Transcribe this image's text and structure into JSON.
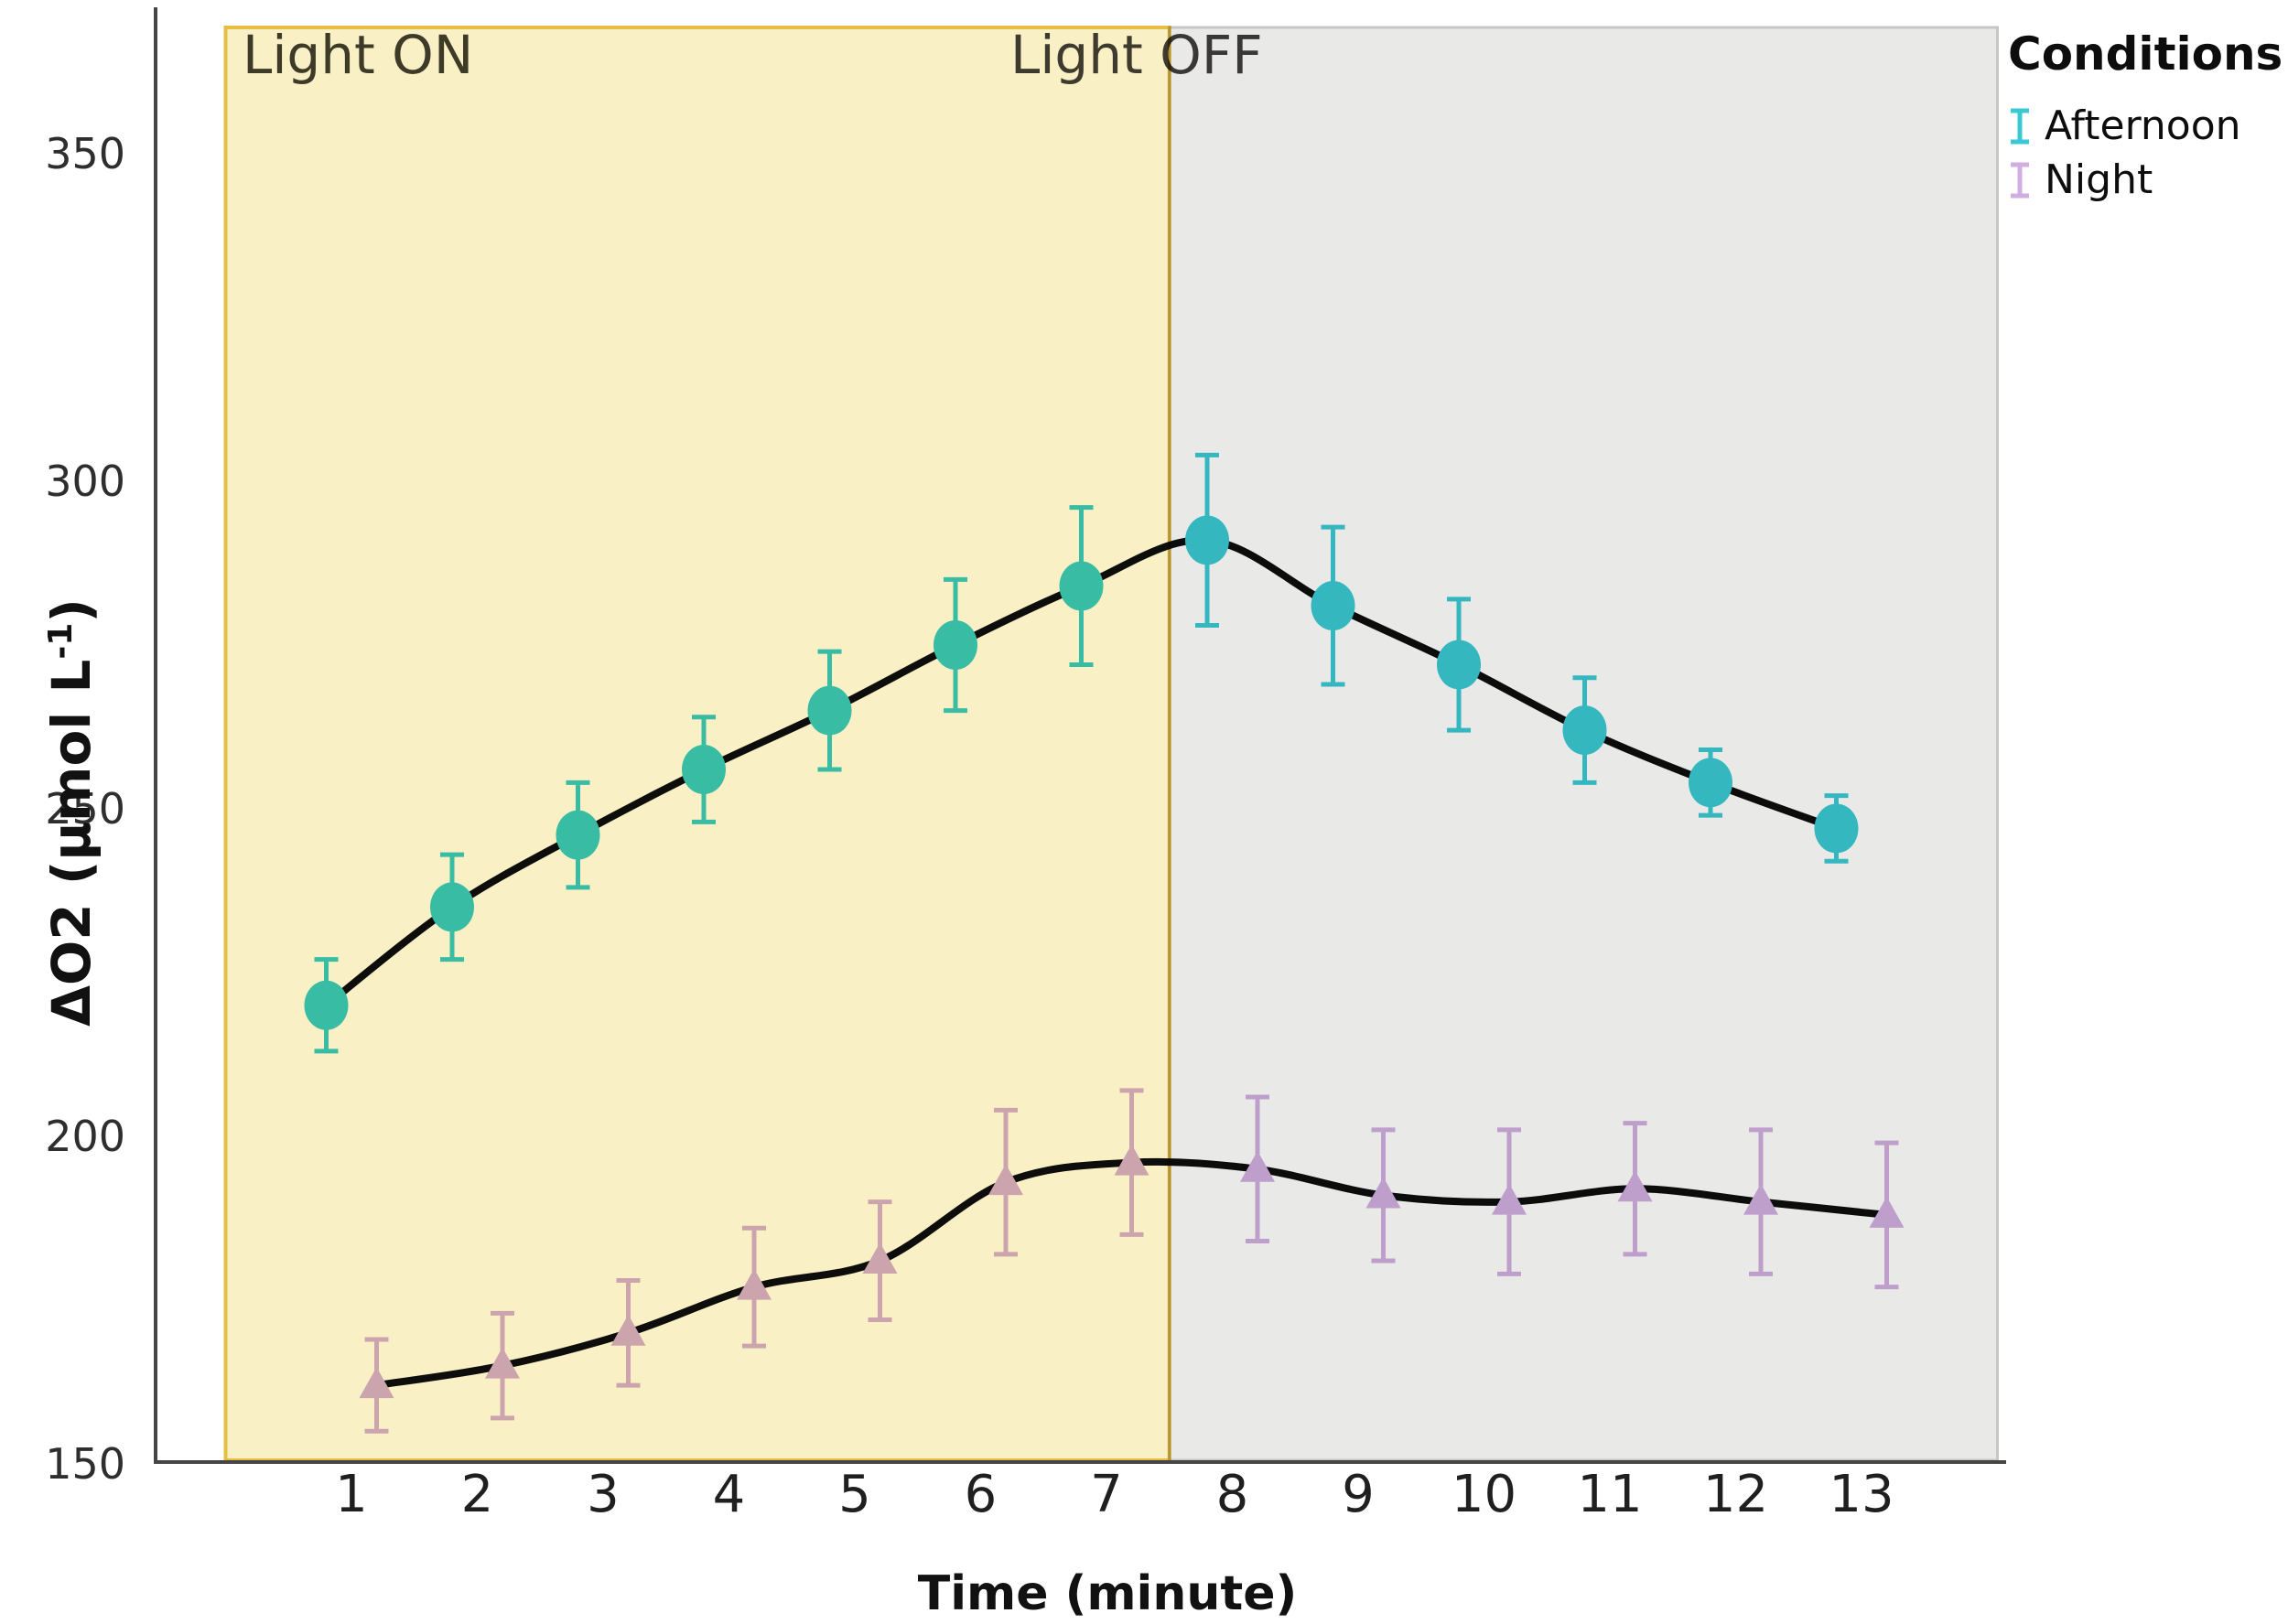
{
  "legend": {
    "title": "Conditions",
    "items": [
      {
        "label": "Afternoon",
        "color": "#3AC8D4"
      },
      {
        "label": "Night",
        "color": "#D0AEE2"
      }
    ]
  },
  "axes": {
    "x_title": "Time (minute)",
    "y_title_main": "ΔO2 (μmol L",
    "y_title_sup": "-1",
    "y_title_close": ")",
    "x_ticks": [
      1,
      2,
      3,
      4,
      5,
      6,
      7,
      8,
      9,
      10,
      11,
      12,
      13
    ],
    "y_ticks": [
      150,
      200,
      250,
      300,
      350
    ]
  },
  "chart_data": {
    "type": "line",
    "title": "",
    "xlabel": "Time (minute)",
    "ylabel": "ΔO2 (μmol L-1)",
    "x": [
      1,
      2,
      3,
      4,
      5,
      6,
      7,
      8,
      9,
      10,
      11,
      12,
      13
    ],
    "ylim": [
      150,
      360
    ],
    "grid": false,
    "legend_position": "top-right",
    "line_color": "#0d0d0d",
    "axis_color": "#454545",
    "tick_color": "#1f1f1f",
    "series": [
      {
        "name": "Afternoon",
        "marker": "circle",
        "color": "#3AC8D4",
        "dodge": -0.2,
        "values": [
          220,
          235,
          246,
          256,
          265,
          275,
          284,
          291,
          281,
          272,
          262,
          254,
          247
        ],
        "errors": [
          7,
          8,
          8,
          8,
          9,
          10,
          12,
          13,
          12,
          10,
          8,
          5,
          5
        ]
      },
      {
        "name": "Night",
        "marker": "triangle",
        "color": "#D0AEE2",
        "dodge": 0.2,
        "values": [
          162,
          165,
          170,
          177,
          181,
          193,
          196,
          195,
          191,
          190,
          192,
          190,
          188
        ],
        "errors": [
          7,
          8,
          8,
          9,
          9,
          11,
          11,
          11,
          10,
          11,
          10,
          11,
          11
        ]
      }
    ],
    "bands": [
      {
        "label": "Light ON",
        "x_start": 0.0,
        "x_end": 7.5,
        "fill": "#FAF0C5",
        "border": "#E7BE45",
        "label_color": "#3F3D33"
      },
      {
        "label": "Light OFF",
        "x_start": 7.5,
        "x_end": 14.08,
        "fill": "#E9E9E7",
        "border": "#C6C6C4",
        "label_color": "#3F3D3B"
      }
    ]
  }
}
